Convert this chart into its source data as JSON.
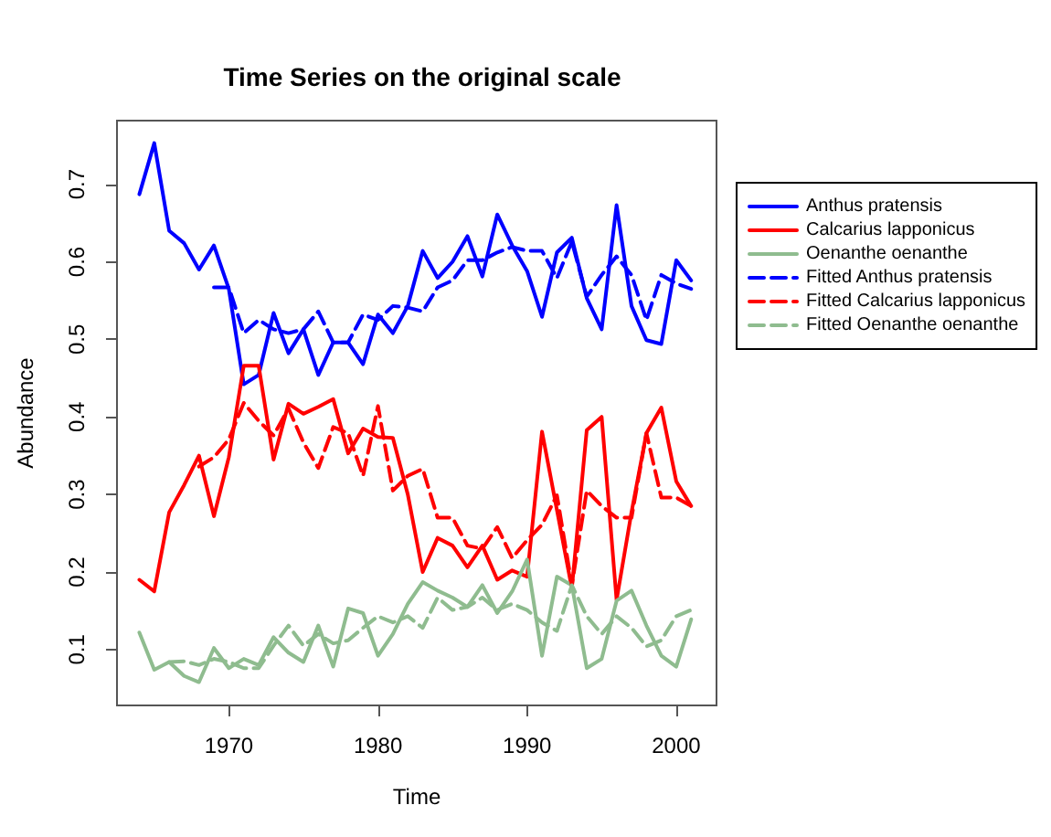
{
  "chart_data": {
    "type": "line",
    "title": "Time Series on the original scale",
    "xlabel": "Time",
    "ylabel": "Abundance",
    "x": [
      1964,
      1965,
      1966,
      1967,
      1968,
      1969,
      1970,
      1971,
      1972,
      1973,
      1974,
      1975,
      1976,
      1977,
      1978,
      1979,
      1980,
      1981,
      1982,
      1983,
      1984,
      1985,
      1986,
      1987,
      1988,
      1989,
      1990,
      1991,
      1992,
      1993,
      1994,
      1995,
      1996,
      1997,
      1998,
      1999,
      2000,
      2001
    ],
    "series": [
      {
        "name": "Anthus pratensis",
        "color": "#0000ff",
        "line_style": "solid",
        "values": [
          0.687,
          0.753,
          0.64,
          0.624,
          0.59,
          0.621,
          0.565,
          0.442,
          0.454,
          0.534,
          0.482,
          0.513,
          0.454,
          0.496,
          0.496,
          0.468,
          0.532,
          0.508,
          0.543,
          0.614,
          0.579,
          0.6,
          0.633,
          0.581,
          0.661,
          0.621,
          0.588,
          0.529,
          0.612,
          0.631,
          0.553,
          0.513,
          0.673,
          0.543,
          0.499,
          0.494,
          0.602,
          0.576
        ]
      },
      {
        "name": "Calcarius lapponicus",
        "color": "#ff0000",
        "line_style": "solid",
        "values": [
          0.19,
          0.175,
          0.277,
          0.312,
          0.35,
          0.272,
          0.348,
          0.466,
          0.466,
          0.345,
          0.417,
          0.404,
          0.413,
          0.423,
          0.353,
          0.385,
          0.374,
          0.373,
          0.3,
          0.2,
          0.244,
          0.234,
          0.206,
          0.234,
          0.19,
          0.202,
          0.194,
          0.381,
          0.28,
          0.179,
          0.383,
          0.4,
          0.164,
          0.277,
          0.379,
          0.412,
          0.317,
          0.285
        ]
      },
      {
        "name": "Oenanthe oenanthe",
        "color": "#8fbc8f",
        "line_style": "solid",
        "values": [
          0.122,
          0.074,
          0.084,
          0.066,
          0.058,
          0.102,
          0.076,
          0.088,
          0.08,
          0.116,
          0.096,
          0.084,
          0.131,
          0.078,
          0.153,
          0.147,
          0.092,
          0.12,
          0.159,
          0.187,
          0.176,
          0.167,
          0.155,
          0.183,
          0.147,
          0.175,
          0.216,
          0.092,
          0.194,
          0.183,
          0.076,
          0.088,
          0.163,
          0.176,
          0.131,
          0.092,
          0.078,
          0.139
        ]
      },
      {
        "name": "Fitted Anthus pratensis",
        "color": "#0000ff",
        "line_style": "dashed",
        "values": [
          null,
          null,
          null,
          null,
          null,
          0.567,
          0.567,
          0.508,
          0.525,
          0.513,
          0.508,
          0.513,
          0.536,
          0.496,
          0.496,
          0.532,
          0.525,
          0.543,
          0.541,
          0.536,
          0.567,
          0.576,
          0.602,
          0.602,
          0.612,
          0.619,
          0.614,
          0.614,
          0.579,
          0.626,
          0.555,
          0.583,
          0.607,
          0.583,
          0.525,
          0.583,
          0.572,
          0.565
        ]
      },
      {
        "name": "Fitted Calcarius lapponicus",
        "color": "#ff0000",
        "line_style": "dashed",
        "values": [
          null,
          null,
          null,
          null,
          0.336,
          0.348,
          0.371,
          0.418,
          0.395,
          0.376,
          0.411,
          0.367,
          0.334,
          0.387,
          0.379,
          0.324,
          0.414,
          0.305,
          0.324,
          0.333,
          0.27,
          0.27,
          0.234,
          0.23,
          0.258,
          0.218,
          0.241,
          0.261,
          0.299,
          0.183,
          0.305,
          0.285,
          0.27,
          0.27,
          0.379,
          0.296,
          0.296,
          0.285
        ]
      },
      {
        "name": "Fitted Oenanthe oenanthe",
        "color": "#8fbc8f",
        "line_style": "dashed",
        "values": [
          null,
          null,
          0.084,
          0.085,
          0.08,
          0.088,
          0.084,
          0.076,
          0.076,
          0.105,
          0.131,
          0.105,
          0.12,
          0.108,
          0.112,
          0.128,
          0.143,
          0.135,
          0.143,
          0.128,
          0.167,
          0.151,
          0.155,
          0.167,
          0.151,
          0.159,
          0.151,
          0.135,
          0.124,
          0.183,
          0.143,
          0.12,
          0.143,
          0.128,
          0.104,
          0.112,
          0.143,
          0.151
        ]
      }
    ],
    "xlim": [
      1962.5,
      2002.7
    ],
    "xticks": [
      1970,
      1980,
      1990,
      2000
    ],
    "ylim": [
      0.028,
      0.782
    ],
    "yticks": [
      0.1,
      0.2,
      0.3,
      0.4,
      0.5,
      0.6,
      0.7
    ],
    "marker": "none",
    "grid": false,
    "legend": "right"
  }
}
